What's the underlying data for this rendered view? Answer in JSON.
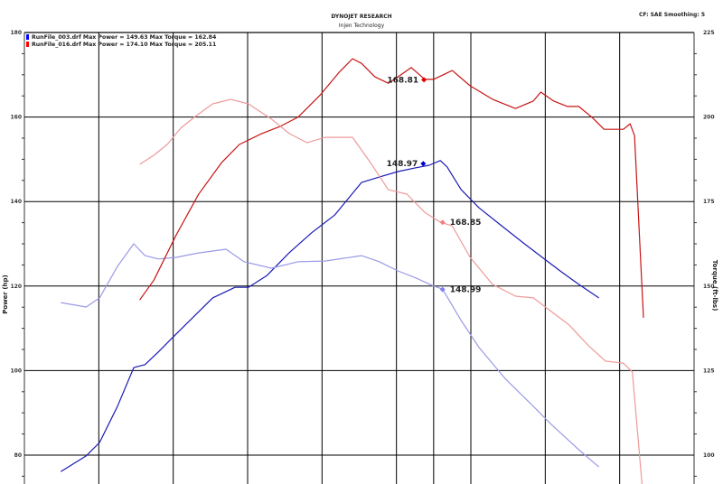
{
  "header": {
    "title": "DYNOJET RESEARCH",
    "subtitle": "Injen Technology",
    "info": "CF: SAE  Smoothing: 5"
  },
  "chart_data": {
    "type": "line",
    "title": "DYNOJET RESEARCH",
    "subtitle": "Injen Technology",
    "ylabel": "Power (hp)",
    "y2label": "Torque (ft-lbs)",
    "ylim": [
      76,
      180
    ],
    "y2lim": [
      95,
      225
    ],
    "xlim": [
      0,
      9
    ],
    "grid": true,
    "legend_placement": "top-left",
    "yticks": [
      "180",
      "160",
      "140",
      "120",
      "100",
      "80"
    ],
    "y2ticks": [
      "225",
      "200",
      "175",
      "150",
      "125",
      "100"
    ],
    "legend": [
      {
        "text": "RunFile_003.drf Max Power = 149.63     Max Torque = 162.84",
        "color": "#0000ff"
      },
      {
        "text": "RunFile_016.drf Max Power = 174.10     Max Torque = 205.11",
        "color": "#ff0000"
      }
    ],
    "cursor_x": 5.5,
    "series": [
      {
        "run": "RunFile_003.drf",
        "kind": "power",
        "axis": "left",
        "color": "#1a1ab4",
        "points": [
          [
            0.49,
            76.1
          ],
          [
            0.83,
            79.8
          ],
          [
            1.01,
            83.0
          ],
          [
            1.25,
            91.5
          ],
          [
            1.47,
            100.7
          ],
          [
            1.62,
            101.4
          ],
          [
            1.8,
            104.4
          ],
          [
            1.98,
            107.6
          ],
          [
            2.22,
            111.8
          ],
          [
            2.53,
            117.2
          ],
          [
            2.83,
            119.7
          ],
          [
            3.01,
            119.7
          ],
          [
            3.26,
            122.5
          ],
          [
            3.56,
            127.9
          ],
          [
            3.86,
            132.6
          ],
          [
            4.17,
            136.8
          ],
          [
            4.53,
            144.5
          ],
          [
            4.77,
            145.8
          ],
          [
            5.02,
            147.1
          ],
          [
            5.26,
            148.0
          ],
          [
            5.44,
            148.6
          ],
          [
            5.59,
            149.7
          ],
          [
            5.68,
            148.2
          ],
          [
            5.87,
            142.8
          ],
          [
            6.11,
            138.5
          ],
          [
            6.41,
            134.3
          ],
          [
            6.72,
            130.0
          ],
          [
            6.96,
            126.8
          ],
          [
            7.2,
            123.6
          ],
          [
            7.45,
            120.4
          ],
          [
            7.72,
            117.2
          ]
        ]
      },
      {
        "run": "RunFile_003.drf",
        "kind": "torque",
        "axis": "right",
        "color": "#9a9ae6",
        "points": [
          [
            0.49,
            145.1
          ],
          [
            0.83,
            143.8
          ],
          [
            1.01,
            146.5
          ],
          [
            1.25,
            155.8
          ],
          [
            1.47,
            162.5
          ],
          [
            1.62,
            159.0
          ],
          [
            1.8,
            158.0
          ],
          [
            2.04,
            158.5
          ],
          [
            2.34,
            159.8
          ],
          [
            2.71,
            160.9
          ],
          [
            2.95,
            157.2
          ],
          [
            3.32,
            155.3
          ],
          [
            3.68,
            157.2
          ],
          [
            4.04,
            157.4
          ],
          [
            4.53,
            159.0
          ],
          [
            4.77,
            157.2
          ],
          [
            5.02,
            154.5
          ],
          [
            5.26,
            152.4
          ],
          [
            5.5,
            150.0
          ],
          [
            5.62,
            149.1
          ],
          [
            5.87,
            139.8
          ],
          [
            6.11,
            131.8
          ],
          [
            6.47,
            122.4
          ],
          [
            6.84,
            114.4
          ],
          [
            7.08,
            109.1
          ],
          [
            7.45,
            101.6
          ],
          [
            7.72,
            96.5
          ]
        ]
      },
      {
        "run": "RunFile_016.drf",
        "kind": "power",
        "axis": "left",
        "color": "#c81414",
        "points": [
          [
            1.55,
            116.7
          ],
          [
            1.74,
            121.4
          ],
          [
            2.04,
            132.1
          ],
          [
            2.34,
            141.7
          ],
          [
            2.65,
            149.2
          ],
          [
            2.89,
            153.5
          ],
          [
            3.19,
            156.1
          ],
          [
            3.44,
            157.8
          ],
          [
            3.68,
            160.0
          ],
          [
            3.98,
            165.3
          ],
          [
            4.23,
            170.6
          ],
          [
            4.41,
            173.8
          ],
          [
            4.53,
            172.7
          ],
          [
            4.71,
            169.5
          ],
          [
            4.89,
            168.0
          ],
          [
            5.02,
            169.5
          ],
          [
            5.2,
            171.7
          ],
          [
            5.38,
            168.9
          ],
          [
            5.5,
            168.9
          ],
          [
            5.75,
            171.0
          ],
          [
            5.99,
            167.4
          ],
          [
            6.29,
            164.2
          ],
          [
            6.6,
            162.0
          ],
          [
            6.84,
            163.8
          ],
          [
            6.94,
            165.9
          ],
          [
            7.11,
            163.8
          ],
          [
            7.3,
            162.5
          ],
          [
            7.45,
            162.5
          ],
          [
            7.63,
            159.9
          ],
          [
            7.79,
            157.1
          ],
          [
            8.05,
            157.1
          ],
          [
            8.14,
            158.4
          ],
          [
            8.2,
            155.6
          ],
          [
            8.32,
            112.5
          ]
        ]
      },
      {
        "run": "RunFile_016.drf",
        "kind": "torque",
        "axis": "right",
        "color": "#ee9a9a",
        "points": [
          [
            1.55,
            186.0
          ],
          [
            1.74,
            188.7
          ],
          [
            1.92,
            191.9
          ],
          [
            2.1,
            196.7
          ],
          [
            2.28,
            199.9
          ],
          [
            2.53,
            203.9
          ],
          [
            2.77,
            205.2
          ],
          [
            3.01,
            203.9
          ],
          [
            3.32,
            199.4
          ],
          [
            3.56,
            195.1
          ],
          [
            3.8,
            192.4
          ],
          [
            4.04,
            194.0
          ],
          [
            4.41,
            194.0
          ],
          [
            4.65,
            186.5
          ],
          [
            4.89,
            178.5
          ],
          [
            5.14,
            177.2
          ],
          [
            5.38,
            171.8
          ],
          [
            5.59,
            168.9
          ],
          [
            5.75,
            167.8
          ],
          [
            5.99,
            158.5
          ],
          [
            6.29,
            150.5
          ],
          [
            6.6,
            147.0
          ],
          [
            6.84,
            146.5
          ],
          [
            7.08,
            142.5
          ],
          [
            7.32,
            138.5
          ],
          [
            7.57,
            132.6
          ],
          [
            7.81,
            127.8
          ],
          [
            8.05,
            127.2
          ],
          [
            8.17,
            124.6
          ],
          [
            8.3,
            91.4
          ]
        ]
      }
    ],
    "markers": [
      {
        "label": "168.81",
        "x": 5.37,
        "value": 168.81,
        "axis": "left",
        "color": "#e00000",
        "side": "left"
      },
      {
        "label": "148.97",
        "x": 5.36,
        "value": 148.97,
        "axis": "left",
        "color": "#0000cc",
        "side": "left"
      },
      {
        "label": "168.85",
        "x": 5.62,
        "value": 168.85,
        "axis": "right",
        "color": "#f08080",
        "side": "right"
      },
      {
        "label": "148.99",
        "x": 5.62,
        "value": 148.99,
        "axis": "right",
        "color": "#8080f0",
        "side": "right"
      }
    ]
  }
}
